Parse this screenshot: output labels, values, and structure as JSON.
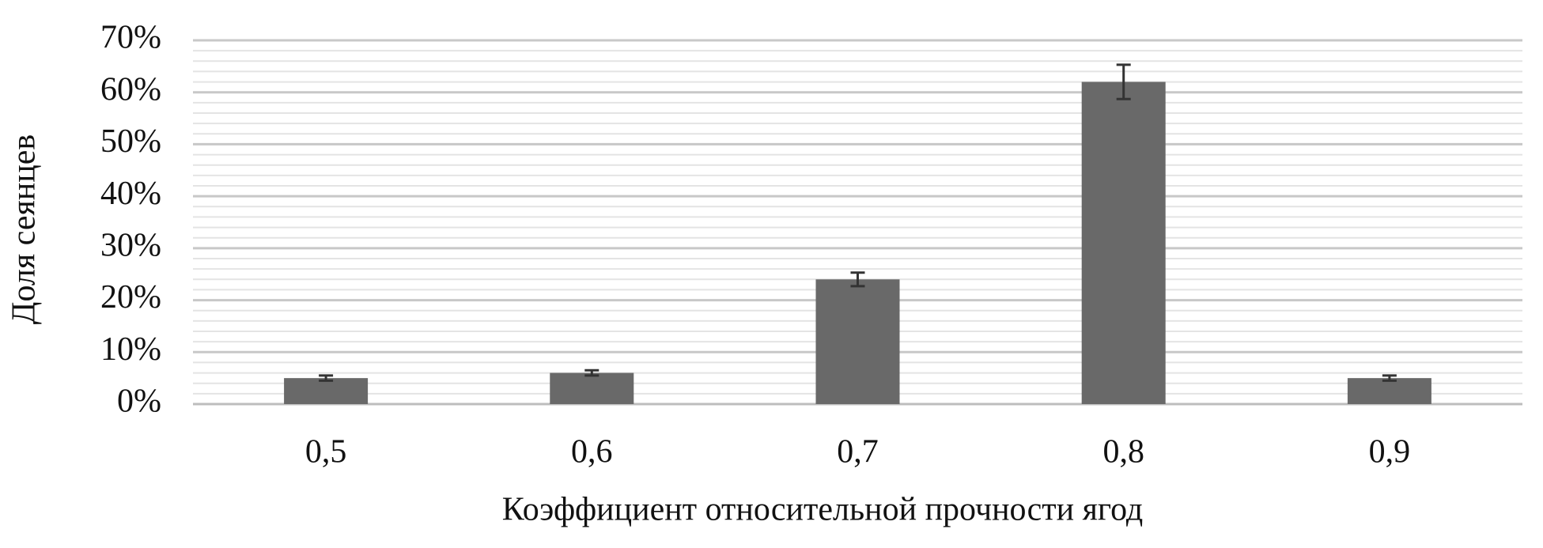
{
  "chart_data": {
    "type": "bar",
    "x_label": "Коэффициент относительной прочности ягод",
    "y_label": "Доля сеянцев",
    "categories": [
      "0,5",
      "0,6",
      "0,7",
      "0,8",
      "0,9"
    ],
    "values": [
      5,
      6,
      24,
      62,
      5
    ],
    "errors": [
      0.5,
      0.5,
      1.3,
      3.3,
      0.5
    ],
    "color": "#696969",
    "ylim": [
      0,
      70
    ],
    "yticks": [
      {
        "value": 0,
        "label": "0%"
      },
      {
        "value": 10,
        "label": "10%"
      },
      {
        "value": 20,
        "label": "20%"
      },
      {
        "value": 30,
        "label": "30%"
      },
      {
        "value": 40,
        "label": "40%"
      },
      {
        "value": 50,
        "label": "50%"
      },
      {
        "value": 60,
        "label": "60%"
      },
      {
        "value": 70,
        "label": "70%"
      }
    ],
    "grid": true
  }
}
